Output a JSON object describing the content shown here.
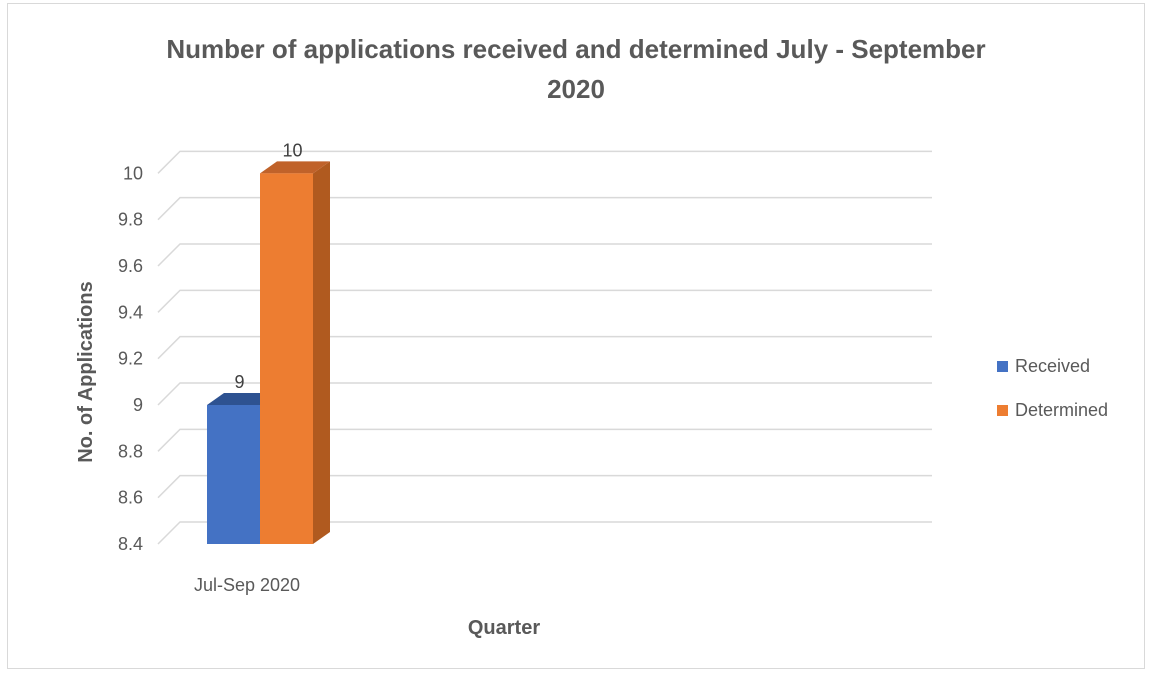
{
  "chart_data": {
    "type": "bar",
    "title_line1": "Number of applications received and determined July - September",
    "title_line2": "2020",
    "xlabel": "Quarter",
    "ylabel": "No. of Applications",
    "categories": [
      "Jul-Sep 2020"
    ],
    "series": [
      {
        "name": "Received",
        "values": [
          9
        ],
        "color": "#4472c4",
        "side_color": "#2f5597",
        "top_color": "#2e5291"
      },
      {
        "name": "Determined",
        "values": [
          10
        ],
        "color": "#ed7d31",
        "side_color": "#b05a1f",
        "top_color": "#c0622a"
      }
    ],
    "ylim": [
      8.4,
      10.2
    ],
    "yticks": [
      "8.4",
      "8.6",
      "8.8",
      "9",
      "9.2",
      "9.4",
      "9.6",
      "9.8",
      "10"
    ],
    "ytick_values": [
      8.4,
      8.6,
      8.8,
      9.0,
      9.2,
      9.4,
      9.6,
      9.8,
      10.0
    ],
    "data_labels": [
      "9",
      "10"
    ],
    "grid": true,
    "legend_position": "right",
    "three_d": true
  }
}
